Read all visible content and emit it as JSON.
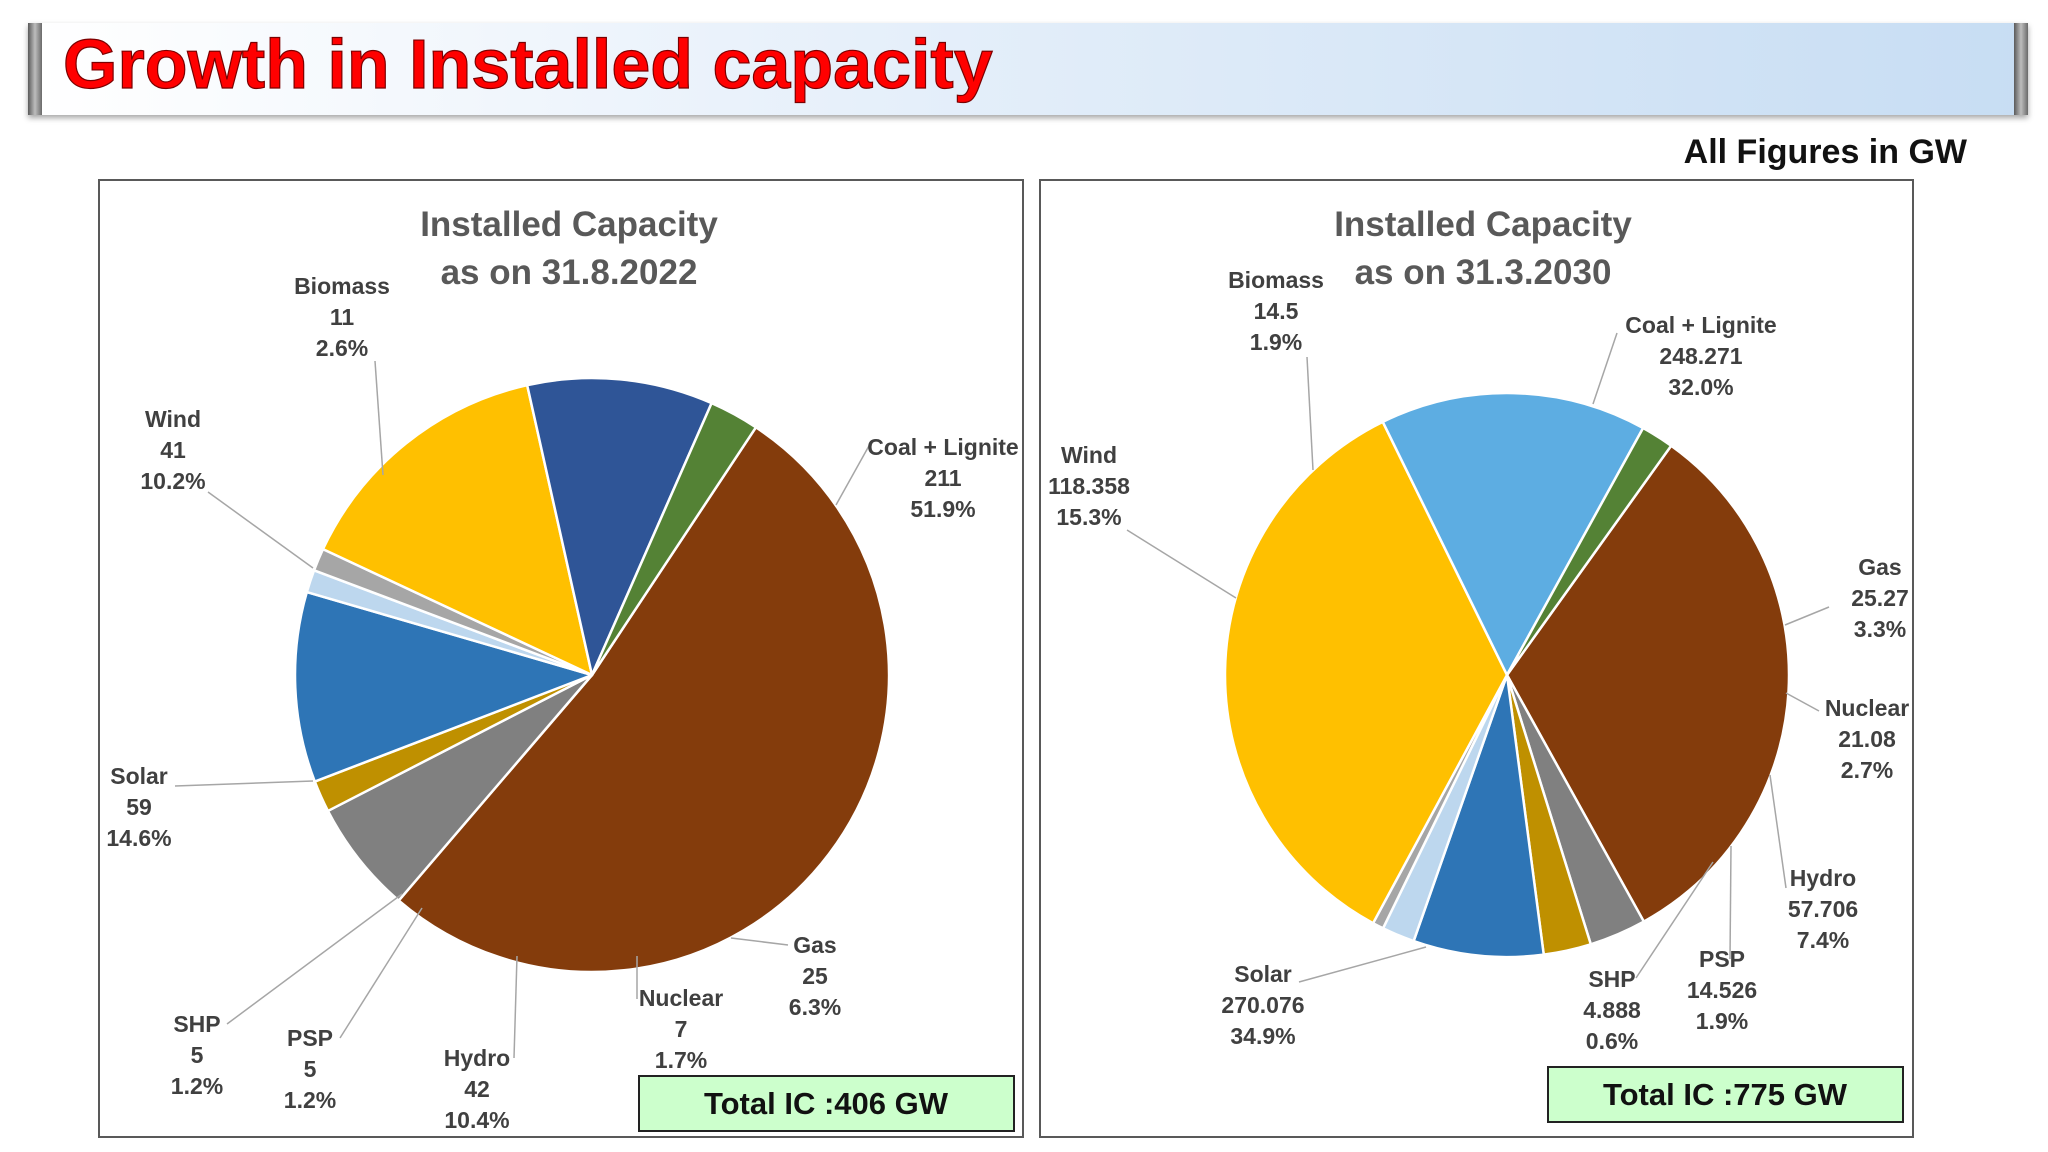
{
  "header": {
    "title": "Growth in Installed capacity",
    "units_note": "All Figures in GW",
    "title_color": "#ff0000"
  },
  "chart_data": [
    {
      "type": "pie",
      "title": "Installed Capacity",
      "subtitle": "as on 31.8.2022",
      "total_label": "Total IC :406 GW",
      "labels": [
        "Coal + Lignite",
        "Gas",
        "Nuclear",
        "Hydro",
        "PSP",
        "SHP",
        "Solar",
        "Wind",
        "Biomass"
      ],
      "values": [
        211,
        25,
        7,
        42,
        5,
        5,
        59,
        41,
        11
      ],
      "value_labels": [
        "211",
        "25",
        "7",
        "42",
        "5",
        "5",
        "59",
        "41",
        "11"
      ],
      "percents": [
        "51.9%",
        "6.3%",
        "1.7%",
        "10.4%",
        "1.2%",
        "1.2%",
        "14.6%",
        "10.2%",
        "2.6%"
      ],
      "colors": [
        "#843c0c",
        "#808080",
        "#bf9000",
        "#2e75b6",
        "#bdd7ee",
        "#a6a6a6",
        "#ffc000",
        "#2f5597",
        "#548235"
      ],
      "legend": "none"
    },
    {
      "type": "pie",
      "title": "Installed Capacity",
      "subtitle": "as on 31.3.2030",
      "total_label": "Total IC :775 GW",
      "labels": [
        "Coal + Lignite",
        "Gas",
        "Nuclear",
        "Hydro",
        "PSP",
        "SHP",
        "Solar",
        "Wind",
        "Biomass"
      ],
      "values": [
        248.271,
        25.27,
        21.08,
        57.706,
        14.526,
        4.888,
        270.076,
        118.358,
        14.5
      ],
      "value_labels": [
        "248.271",
        "25.27",
        "21.08",
        "57.706",
        "14.526",
        "4.888",
        "270.076",
        "118.358",
        "14.5"
      ],
      "percents": [
        "32.0%",
        "3.3%",
        "2.7%",
        "7.4%",
        "1.9%",
        "0.6%",
        "34.9%",
        "15.3%",
        "1.9%"
      ],
      "colors": [
        "#843c0c",
        "#808080",
        "#bf9000",
        "#2e75b6",
        "#bdd7ee",
        "#a6a6a6",
        "#ffc000",
        "#5dade2",
        "#548235"
      ],
      "legend": "none"
    }
  ]
}
